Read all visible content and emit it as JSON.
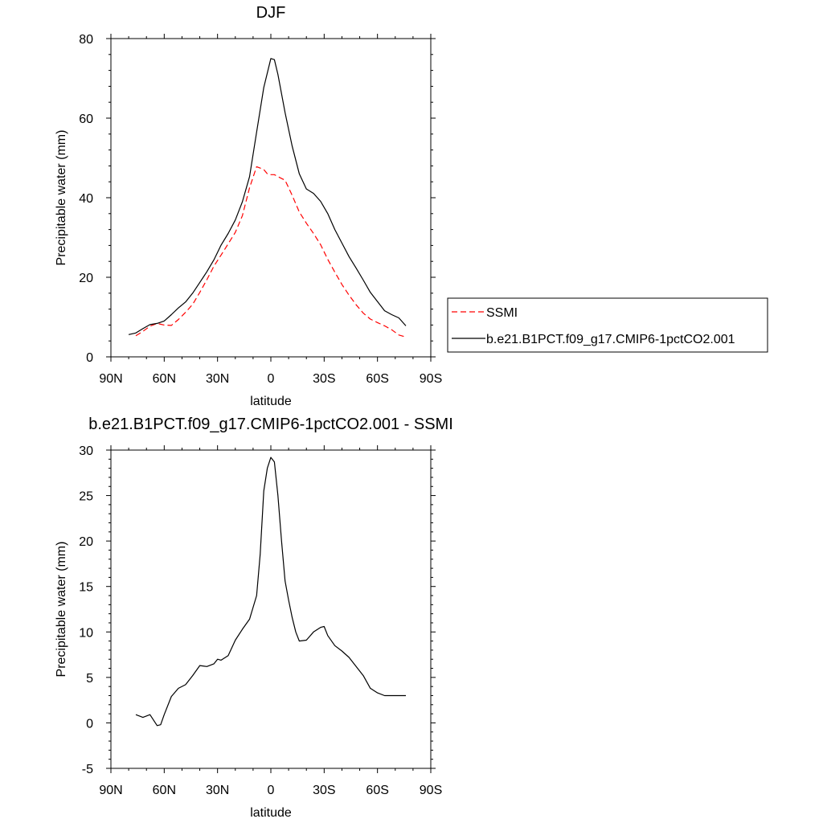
{
  "chart_data": [
    {
      "type": "line",
      "title": "DJF",
      "xlabel": "latitude",
      "ylabel": "Precipitable water (mm)",
      "xlim": [
        90,
        -90
      ],
      "ylim": [
        0,
        80
      ],
      "xticks": [
        {
          "value": 90,
          "label": "90N"
        },
        {
          "value": 60,
          "label": "60N"
        },
        {
          "value": 30,
          "label": "30N"
        },
        {
          "value": 0,
          "label": "0"
        },
        {
          "value": -30,
          "label": "30S"
        },
        {
          "value": -60,
          "label": "60S"
        },
        {
          "value": -90,
          "label": "90S"
        }
      ],
      "yticks": [
        0,
        20,
        40,
        60,
        80
      ],
      "legend_position": "right",
      "series": [
        {
          "name": "SSMI",
          "color": "#ff0000",
          "style": "dashed",
          "x": [
            76,
            72,
            68,
            64,
            60,
            56,
            52,
            48,
            44,
            40,
            36,
            32,
            28,
            24,
            20,
            16,
            12,
            8,
            4,
            2,
            0,
            -2,
            -4,
            -8,
            -12,
            -16,
            -20,
            -24,
            -28,
            -32,
            -36,
            -40,
            -44,
            -48,
            -52,
            -56,
            -60,
            -64,
            -68,
            -72,
            -76
          ],
          "y": [
            5.3,
            6.4,
            7.7,
            8.4,
            8.0,
            7.9,
            9.4,
            11.2,
            13.2,
            16.2,
            19.4,
            22.8,
            25.6,
            28.4,
            31.3,
            35.5,
            42.5,
            47.8,
            47.1,
            46.0,
            45.8,
            45.8,
            45.3,
            44.4,
            40.6,
            36.4,
            33.6,
            31.0,
            28.2,
            24.5,
            21.3,
            18.2,
            15.5,
            13.1,
            11.0,
            9.5,
            8.6,
            7.8,
            6.8,
            5.5,
            5.0
          ]
        },
        {
          "name": "b.e21.B1PCT.f09_g17.CMIP6-1pctCO2.001",
          "color": "#000000",
          "style": "solid",
          "x": [
            80,
            76,
            72,
            68,
            64,
            60,
            56,
            52,
            48,
            44,
            40,
            36,
            32,
            28,
            24,
            20,
            16,
            12,
            8,
            4,
            0,
            -2,
            -4,
            -8,
            -12,
            -16,
            -20,
            -24,
            -28,
            -32,
            -36,
            -40,
            -44,
            -48,
            -52,
            -56,
            -60,
            -64,
            -68,
            -72,
            -76
          ],
          "y": [
            5.6,
            6.0,
            7.1,
            8.1,
            8.4,
            9.0,
            10.6,
            12.3,
            13.8,
            16.0,
            18.7,
            21.4,
            24.4,
            28.1,
            31.0,
            34.4,
            39.0,
            45.3,
            56.5,
            67.7,
            75.0,
            74.7,
            71.0,
            61.4,
            53.0,
            46.0,
            42.2,
            41.1,
            39.1,
            36.0,
            32.0,
            28.6,
            25.2,
            22.3,
            19.3,
            16.2,
            13.9,
            11.6,
            10.6,
            9.8,
            7.8
          ]
        }
      ]
    },
    {
      "type": "line",
      "title": "b.e21.B1PCT.f09_g17.CMIP6-1pctCO2.001 - SSMI",
      "xlabel": "latitude",
      "ylabel": "Precipitable water (mm)",
      "xlim": [
        90,
        -90
      ],
      "ylim": [
        -5,
        30
      ],
      "xticks": [
        {
          "value": 90,
          "label": "90N"
        },
        {
          "value": 60,
          "label": "60N"
        },
        {
          "value": 30,
          "label": "30N"
        },
        {
          "value": 0,
          "label": "0"
        },
        {
          "value": -30,
          "label": "30S"
        },
        {
          "value": -60,
          "label": "60S"
        },
        {
          "value": -90,
          "label": "90S"
        }
      ],
      "yticks": [
        -5,
        0,
        5,
        10,
        15,
        20,
        25,
        30
      ],
      "series": [
        {
          "color": "#000000",
          "style": "solid",
          "x": [
            76,
            72,
            68,
            64,
            62,
            60,
            56,
            52,
            48,
            44,
            40,
            36,
            32,
            30,
            28,
            24,
            20,
            16,
            12,
            8,
            6,
            4,
            2,
            0,
            -2,
            -4,
            -6,
            -8,
            -10,
            -12,
            -14,
            -16,
            -20,
            -24,
            -28,
            -30,
            -32,
            -36,
            -40,
            -44,
            -48,
            -52,
            -56,
            -60,
            -64,
            -68,
            -72,
            -76
          ],
          "y": [
            0.9,
            0.6,
            0.9,
            -0.3,
            -0.2,
            0.9,
            2.9,
            3.8,
            4.2,
            5.2,
            6.3,
            6.2,
            6.5,
            7.0,
            6.9,
            7.4,
            9.1,
            10.3,
            11.4,
            14.0,
            18.5,
            25.5,
            28.0,
            29.2,
            28.7,
            25.0,
            20.0,
            15.6,
            13.5,
            11.6,
            10.0,
            9.0,
            9.1,
            10.0,
            10.5,
            10.6,
            9.6,
            8.5,
            7.9,
            7.2,
            6.2,
            5.2,
            3.8,
            3.3,
            3.0,
            3.0,
            3.0,
            3.0
          ]
        }
      ]
    }
  ]
}
